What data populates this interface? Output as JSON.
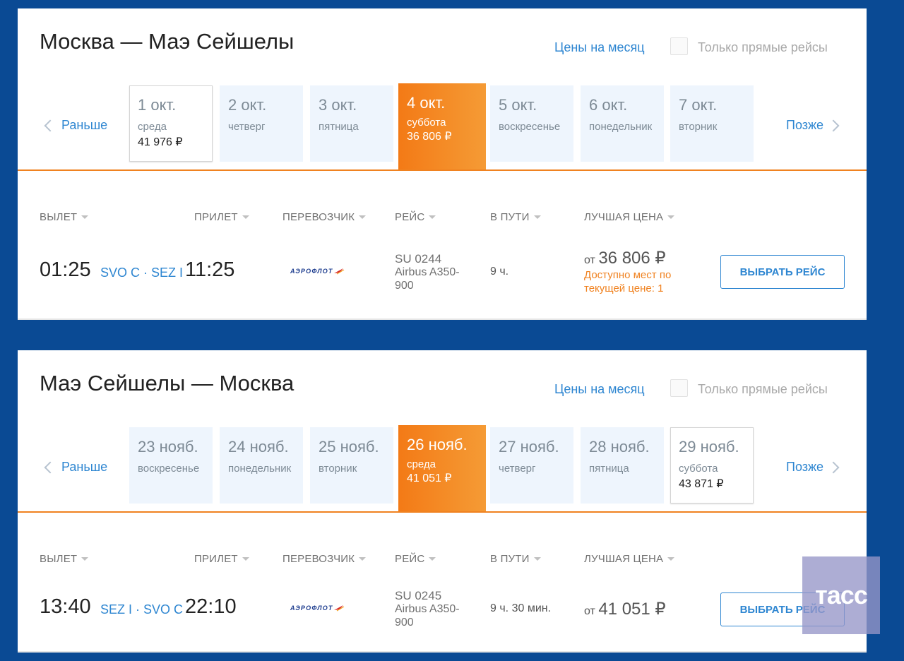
{
  "legs": [
    {
      "title": "Москва — Маэ Сейшелы",
      "month_link": "Цены на месяц",
      "direct_label": "Только прямые рейсы",
      "prev_label": "Раньше",
      "next_label": "Позже",
      "dates": [
        {
          "date": "1 окт.",
          "weekday": "среда",
          "price": "41 976 ₽"
        },
        {
          "date": "2 окт.",
          "weekday": "четверг",
          "price": ""
        },
        {
          "date": "3 окт.",
          "weekday": "пятница",
          "price": ""
        },
        {
          "date": "4 окт.",
          "weekday": "суббота",
          "price": "36 806 ₽"
        },
        {
          "date": "5 окт.",
          "weekday": "воскресенье",
          "price": ""
        },
        {
          "date": "6 окт.",
          "weekday": "понедельник",
          "price": ""
        },
        {
          "date": "7 окт.",
          "weekday": "вторник",
          "price": ""
        }
      ],
      "headers": {
        "departure": "ВЫЛЕТ",
        "arrival": "ПРИЛЕТ",
        "carrier": "ПЕРЕВОЗЧИК",
        "flight": "РЕЙС",
        "duration": "В ПУТИ",
        "best_price": "ЛУЧШАЯ ЦЕНА"
      },
      "flight": {
        "dep_time": "01:25",
        "route": "SVO C · SEZ I",
        "arr_time": "11:25",
        "carrier_logo": "АЭРОФЛОТ",
        "flight_no": "SU 0244",
        "aircraft": "Airbus A350-900",
        "duration": "9 ч.",
        "price_prefix": "от",
        "price": "36 806 ₽",
        "seats_note": "Доступно мест по текущей цене: 1",
        "button": "ВЫБРАТЬ РЕЙС"
      }
    },
    {
      "title": "Маэ Сейшелы — Москва",
      "month_link": "Цены на месяц",
      "direct_label": "Только прямые рейсы",
      "prev_label": "Раньше",
      "next_label": "Позже",
      "dates": [
        {
          "date": "23 нояб.",
          "weekday": "воскресенье",
          "price": ""
        },
        {
          "date": "24 нояб.",
          "weekday": "понедельник",
          "price": ""
        },
        {
          "date": "25 нояб.",
          "weekday": "вторник",
          "price": ""
        },
        {
          "date": "26 нояб.",
          "weekday": "среда",
          "price": "41 051 ₽"
        },
        {
          "date": "27 нояб.",
          "weekday": "четверг",
          "price": ""
        },
        {
          "date": "28 нояб.",
          "weekday": "пятница",
          "price": ""
        },
        {
          "date": "29 нояб.",
          "weekday": "суббота",
          "price": "43 871 ₽"
        }
      ],
      "headers": {
        "departure": "ВЫЛЕТ",
        "arrival": "ПРИЛЕТ",
        "carrier": "ПЕРЕВОЗЧИК",
        "flight": "РЕЙС",
        "duration": "В ПУТИ",
        "best_price": "ЛУЧШАЯ ЦЕНА"
      },
      "flight": {
        "dep_time": "13:40",
        "route": "SEZ I · SVO C",
        "arr_time": "22:10",
        "carrier_logo": "АЭРОФЛОТ",
        "flight_no": "SU 0245",
        "aircraft": "Airbus A350-900",
        "duration": "9 ч. 30 мин.",
        "price_prefix": "от",
        "price": "41 051 ₽",
        "seats_note": "",
        "button": "ВЫБРАТЬ РЕЙС"
      }
    }
  ],
  "watermark": "тасс",
  "colors": {
    "accent_orange": "#f08220",
    "link_blue": "#2e86d1",
    "page_blue": "#0a4a94"
  }
}
